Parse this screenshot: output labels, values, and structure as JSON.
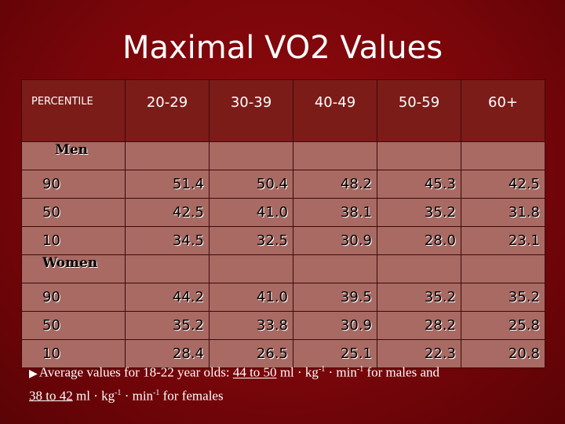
{
  "title": "Maximal VO2 Values",
  "table": {
    "header_label": "PERCENTILE",
    "columns": [
      "20-29",
      "30-39",
      "40-49",
      "50-59",
      "60+"
    ],
    "groups": [
      {
        "label": "Men",
        "rows": [
          {
            "percentile": "90",
            "values": [
              "51.4",
              "50.4",
              "48.2",
              "45.3",
              "42.5"
            ]
          },
          {
            "percentile": "50",
            "values": [
              "42.5",
              "41.0",
              "38.1",
              "35.2",
              "31.8"
            ]
          },
          {
            "percentile": "10",
            "values": [
              "34.5",
              "32.5",
              "30.9",
              "28.0",
              "23.1"
            ]
          }
        ]
      },
      {
        "label": "Women",
        "rows": [
          {
            "percentile": "90",
            "values": [
              "44.2",
              "41.0",
              "39.5",
              "35.2",
              "35.2"
            ]
          },
          {
            "percentile": "50",
            "values": [
              "35.2",
              "33.8",
              "30.9",
              "28.2",
              "25.8"
            ]
          },
          {
            "percentile": "10",
            "values": [
              "28.4",
              "26.5",
              "25.1",
              "22.3",
              "20.8"
            ]
          }
        ]
      }
    ]
  },
  "footnote": {
    "bullet": "▶",
    "prefix": "Average values for 18-22 year olds: ",
    "male_range": "44 to 50",
    "unit_ml": " ml · kg",
    "sup1": "-1",
    "unit_min": " · min",
    "sup2": "-1",
    "male_suffix": " for males and",
    "female_range": "38 to 42",
    "unit_ml_2": " ml · kg",
    "sup3": "-1",
    "unit_min_2": " · min",
    "sup4": "-1",
    "female_suffix": " for females"
  }
}
